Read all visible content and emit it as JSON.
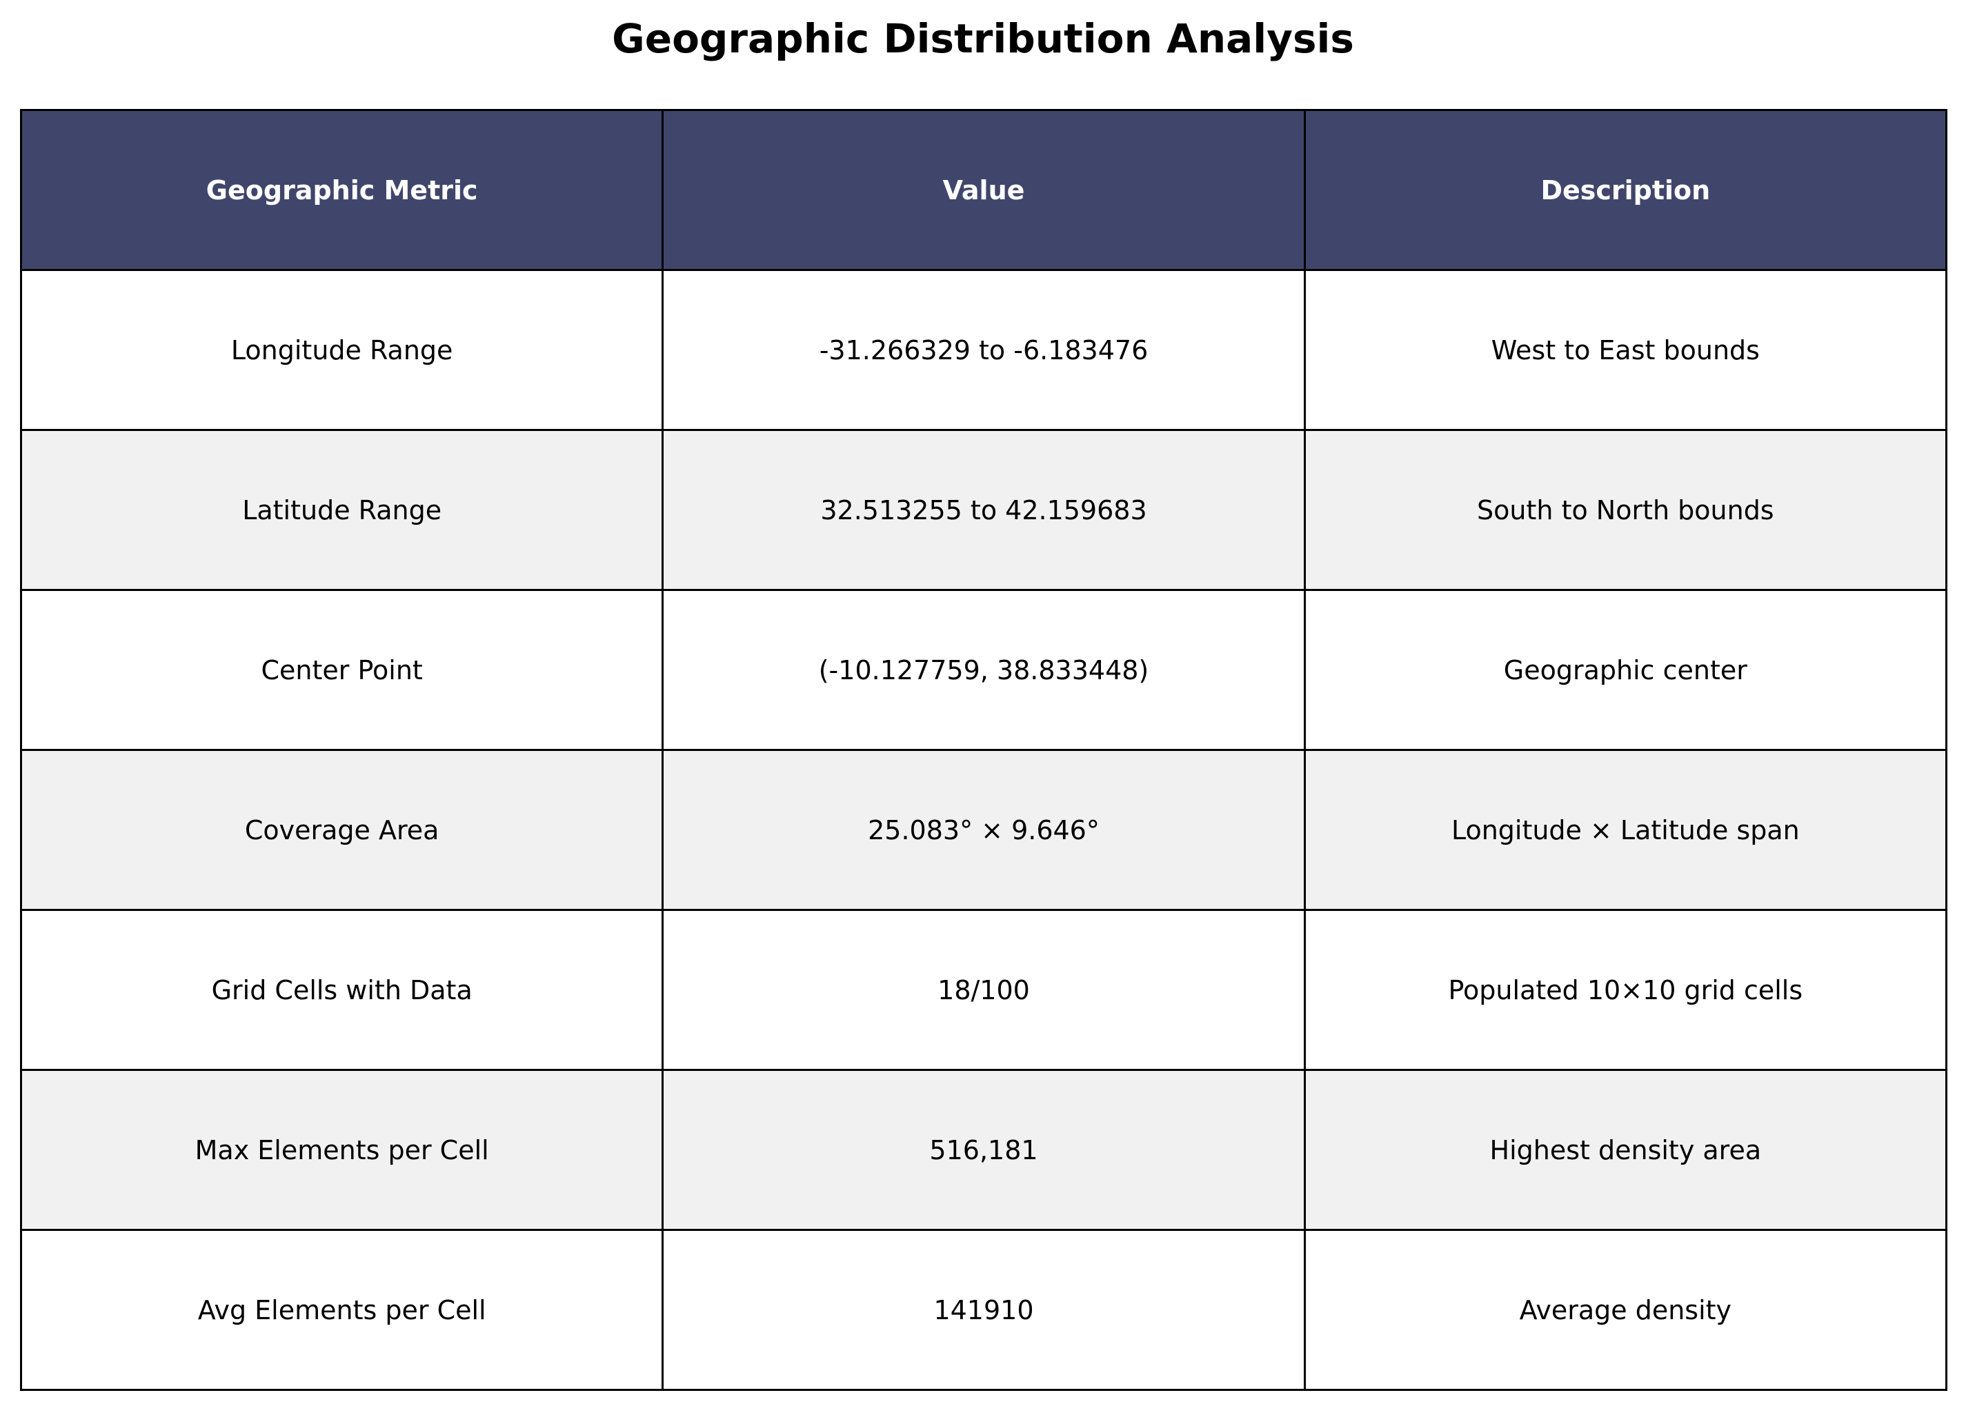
{
  "chart_data": {
    "type": "table",
    "title": "Geographic Distribution Analysis",
    "columns": [
      "Geographic Metric",
      "Value",
      "Description"
    ],
    "rows": [
      [
        "Longitude Range",
        "-31.266329 to -6.183476",
        "West to East bounds"
      ],
      [
        "Latitude Range",
        "32.513255 to 42.159683",
        "South to North bounds"
      ],
      [
        "Center Point",
        "(-10.127759, 38.833448)",
        "Geographic center"
      ],
      [
        "Coverage Area",
        "25.083° × 9.646°",
        "Longitude × Latitude span"
      ],
      [
        "Grid Cells with Data",
        "18/100",
        "Populated 10×10 grid cells"
      ],
      [
        "Max Elements per Cell",
        "516,181",
        "Highest density area"
      ],
      [
        "Avg Elements per Cell",
        "141910",
        "Average density"
      ]
    ],
    "colors": {
      "header_background": "#40466b",
      "header_text": "#ffffff",
      "row_alternate": "#f1f1f1",
      "row_base": "#ffffff",
      "border": "#000000"
    }
  }
}
